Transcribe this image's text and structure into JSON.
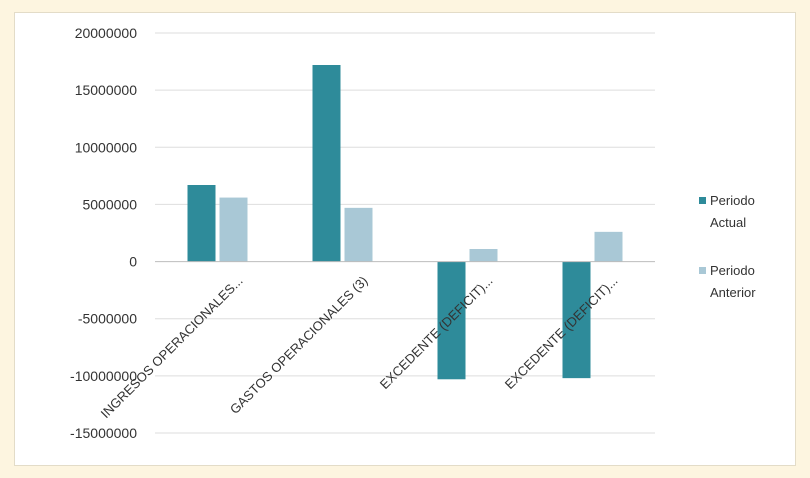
{
  "chart_data": {
    "type": "bar",
    "categories": [
      "INGRESOS OPERACIONALES...",
      "GASTOS OPERACIONALES (3)",
      "EXCEDENTE (DEFICIT)...",
      "EXCEDENTE (DEFICIT)..."
    ],
    "series": [
      {
        "name": "Periodo Actual",
        "color": "#2e8b9a",
        "values": [
          6700000,
          17200000,
          -10300000,
          -10200000
        ]
      },
      {
        "name": "Periodo Anterior",
        "color": "#a9c8d6",
        "values": [
          5600000,
          4700000,
          1100000,
          2600000
        ]
      }
    ],
    "yticks": [
      "20000000",
      "15000000",
      "10000000",
      "5000000",
      "0",
      "-5000000",
      "-10000000",
      "-15000000"
    ],
    "ylim": [
      -15000000,
      20000000
    ],
    "grid": true,
    "legend": "right",
    "title": "",
    "xlabel": "",
    "ylabel": ""
  }
}
